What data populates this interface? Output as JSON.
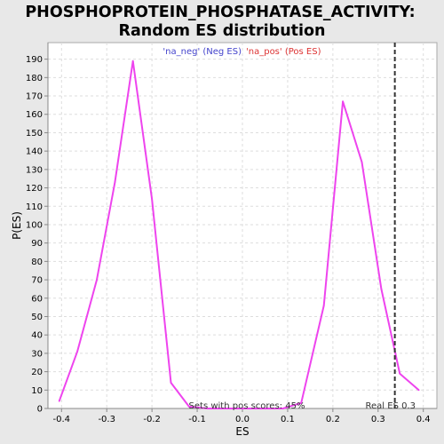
{
  "chart_data": {
    "type": "line",
    "title_lines": [
      "PHOSPHOPROTEIN_PHOSPHATASE_ACTIVITY:",
      "Random ES distribution"
    ],
    "xlabel": "ES",
    "ylabel": "P(ES)",
    "xlim": [
      -0.43,
      0.43
    ],
    "ylim": [
      0,
      199
    ],
    "x_ticks": [
      -0.4,
      -0.3,
      -0.2,
      -0.1,
      0.0,
      0.1,
      0.2,
      0.3,
      0.4
    ],
    "x_tick_labels": [
      "-0.4",
      "-0.3",
      "-0.2",
      "-0.1",
      "0.0",
      "0.1",
      "0.2",
      "0.3",
      "0.4"
    ],
    "y_ticks": [
      0,
      10,
      20,
      30,
      40,
      50,
      60,
      70,
      80,
      90,
      100,
      110,
      120,
      130,
      140,
      150,
      160,
      170,
      180,
      190
    ],
    "y_tick_labels": [
      "0",
      "10",
      "20",
      "30",
      "40",
      "50",
      "60",
      "70",
      "80",
      "90",
      "100",
      "110",
      "120",
      "130",
      "140",
      "150",
      "160",
      "170",
      "180",
      "190"
    ],
    "grid": true,
    "legend": {
      "placement": "top-center",
      "entries": [
        {
          "label": "'na_neg' (Neg ES)",
          "color": "#4444cc"
        },
        {
          "label": "'na_pos' (Pos ES)",
          "color": "#dd3333"
        }
      ]
    },
    "series": [
      {
        "color": "#ee44ee",
        "x": [
          -0.405,
          -0.365,
          -0.322,
          -0.282,
          -0.242,
          -0.2,
          -0.158,
          -0.118,
          -0.077,
          -0.037,
          0.005,
          0.047,
          0.09,
          0.13,
          0.18,
          0.222,
          0.264,
          0.307,
          0.348,
          0.39
        ],
        "y": [
          4,
          31,
          70,
          123,
          189,
          114,
          14,
          1,
          0,
          0,
          0,
          0,
          0,
          3,
          56,
          167,
          134,
          65,
          19,
          10
        ]
      }
    ],
    "reference_line": {
      "x": 0.337,
      "label": "Real ES 0.3",
      "style": "dashed",
      "color": "#333333"
    },
    "annotation": "Sets with pos scores: 45%"
  },
  "colors": {
    "page_background": "#e8e8e8",
    "plot_background": "#ffffff",
    "grid": "#dddddd",
    "axis": "#888888"
  }
}
